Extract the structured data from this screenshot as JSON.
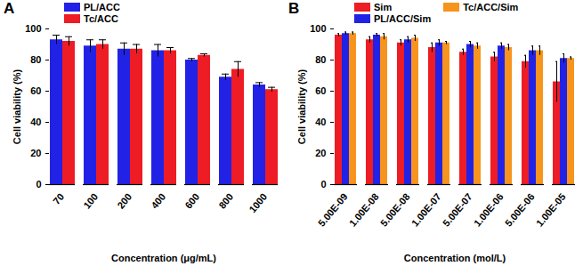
{
  "chart_data": [
    {
      "type": "bar",
      "title": "A",
      "x_label": "Concentration (μg/mL)",
      "y_label": "Cell viability (%)",
      "categories": [
        "70",
        "100",
        "200",
        "400",
        "600",
        "800",
        "1000"
      ],
      "series": [
        {
          "name": "PL/ACC",
          "color": "#2222e6",
          "values": [
            93,
            89,
            87,
            86,
            80,
            69,
            64
          ],
          "errors": [
            3,
            4,
            4,
            4,
            1,
            2,
            1.5
          ]
        },
        {
          "name": "Tc/ACC",
          "color": "#ee1c24",
          "values": [
            92,
            90,
            87,
            86,
            83,
            74,
            61
          ],
          "errors": [
            3,
            3,
            3,
            2,
            1,
            5,
            1.5
          ]
        }
      ],
      "ylim": [
        0,
        100
      ],
      "yticks": [
        0,
        20,
        40,
        60,
        80,
        100
      ],
      "grid": false,
      "legend": "top"
    },
    {
      "type": "bar",
      "title": "B",
      "x_label": "Concentration (mol/L)",
      "y_label": "Cell viability (%)",
      "categories": [
        "5.00E-09",
        "1.00E-08",
        "5.00E-08",
        "1.00E-07",
        "5.00E-07",
        "1.00E-06",
        "5.00E-06",
        "1.00E-05"
      ],
      "series": [
        {
          "name": "Sim",
          "color": "#ee1c24",
          "values": [
            96,
            93,
            91,
            88,
            85,
            82,
            79,
            66
          ],
          "errors": [
            1,
            2,
            2,
            3,
            2,
            3,
            4,
            13
          ]
        },
        {
          "name": "PL/ACC/Sim",
          "color": "#2222e6",
          "values": [
            97,
            96,
            93,
            91,
            90,
            89,
            86,
            81
          ],
          "errors": [
            1,
            1,
            2,
            2,
            2,
            2,
            3,
            3
          ]
        },
        {
          "name": "Tc/ACC/Sim",
          "color": "#f7941d",
          "values": [
            97,
            95,
            94,
            91,
            89,
            88,
            86,
            81
          ],
          "errors": [
            1,
            2,
            2,
            1,
            2,
            2,
            3,
            1
          ]
        }
      ],
      "ylim": [
        0,
        100
      ],
      "yticks": [
        0,
        20,
        40,
        60,
        80,
        100
      ],
      "grid": false,
      "legend": "top"
    }
  ]
}
